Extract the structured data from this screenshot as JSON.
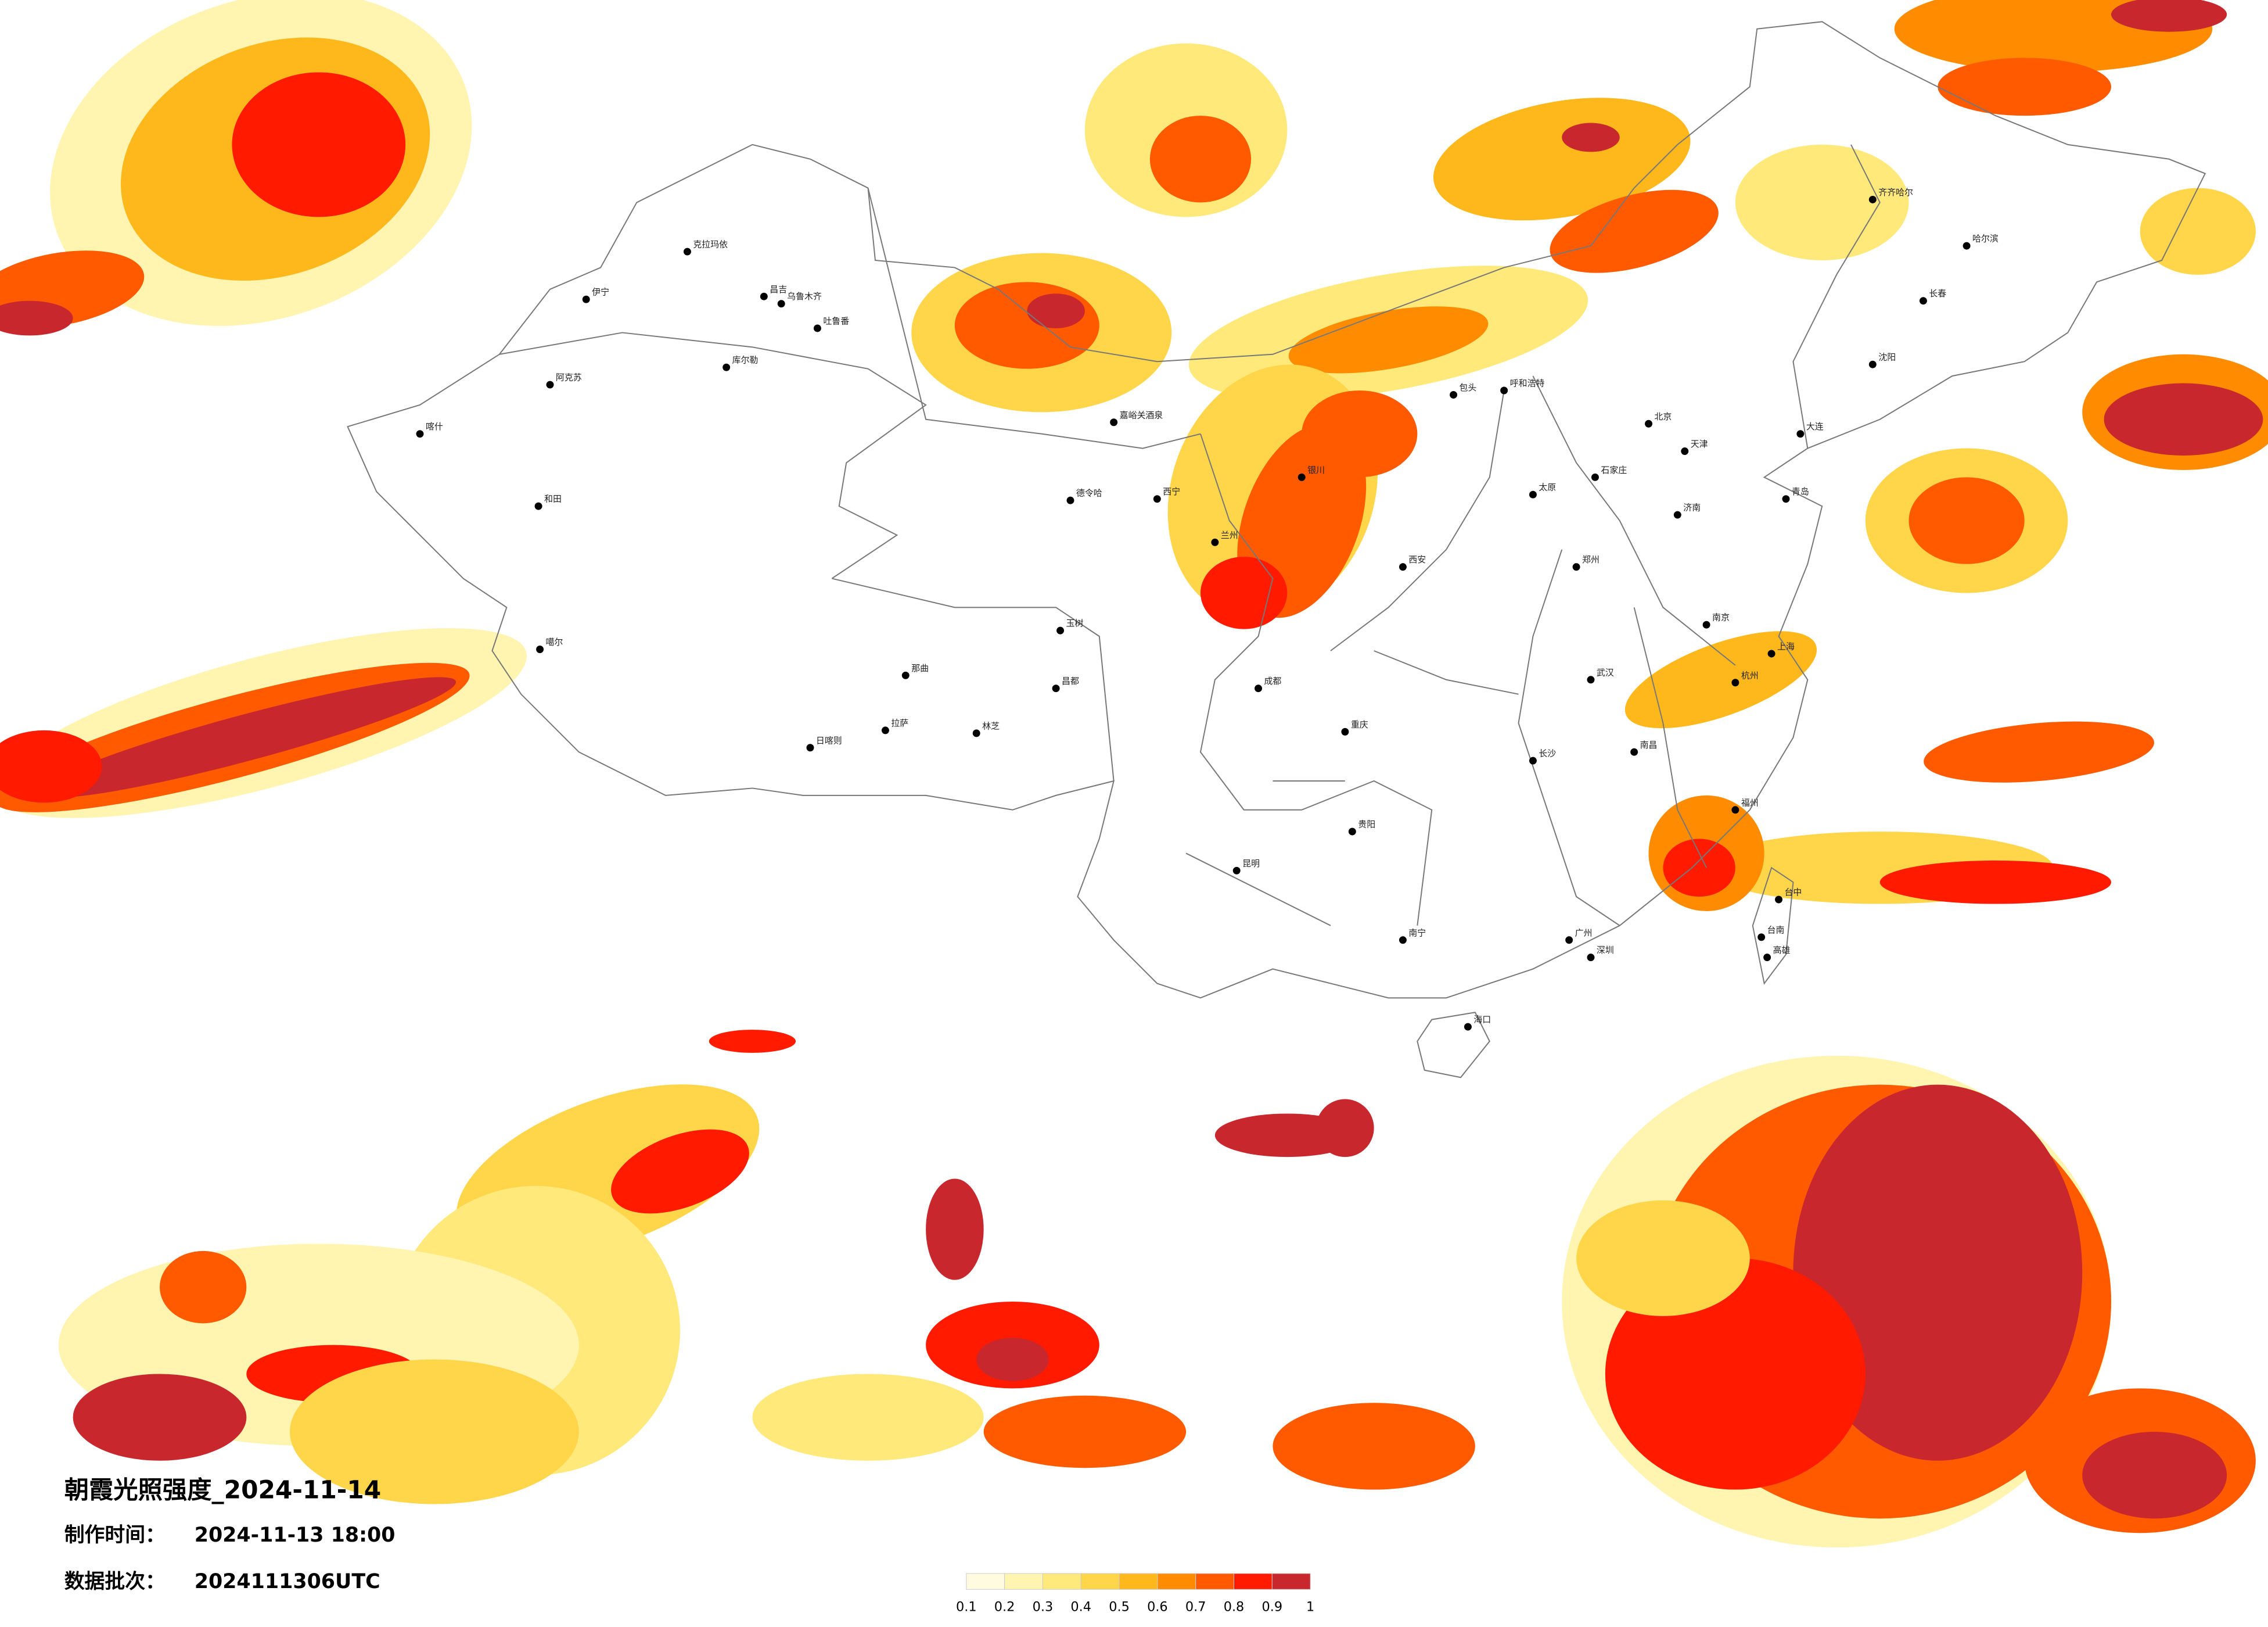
{
  "title": "朝霞光照强度_2024-11-14",
  "production_label": "制作时间：",
  "production_time": "2024-11-13 18:00",
  "batch_label": "数据批次：",
  "batch": "2024111306UTC",
  "legend": {
    "colors": [
      "#fffbe0",
      "#fff4b0",
      "#ffe97a",
      "#ffd54a",
      "#ffb81c",
      "#ff8c00",
      "#ff5a00",
      "#ff1a00",
      "#c8282d"
    ],
    "ticks": [
      0.1,
      0.2,
      0.3,
      0.4,
      0.5,
      0.6,
      0.7,
      0.8,
      0.9,
      1
    ]
  },
  "cities": [
    "克拉玛依",
    "昌吉",
    "乌鲁木齐",
    "吐鲁番",
    "伊宁",
    "库尔勒",
    "阿克苏",
    "喀什",
    "和田",
    "噶尔",
    "日喀则",
    "拉萨",
    "林芝",
    "那曲",
    "嘉峪关酒泉",
    "德令哈",
    "玉树",
    "昌都",
    "西宁",
    "兰州",
    "银川",
    "呼和浩特",
    "包头",
    "哈尔滨",
    "长春",
    "沈阳",
    "北京",
    "天津",
    "石家庄",
    "太原",
    "济南",
    "郑州",
    "西安",
    "武汉",
    "南京",
    "上海",
    "杭州",
    "长沙",
    "南昌",
    "福州",
    "广州",
    "深圳",
    "南宁",
    "海口",
    "昆明",
    "贵阳",
    "成都",
    "重庆",
    "台中",
    "台南",
    "高雄",
    "齐齐哈尔",
    "大连",
    "青岛"
  ]
}
